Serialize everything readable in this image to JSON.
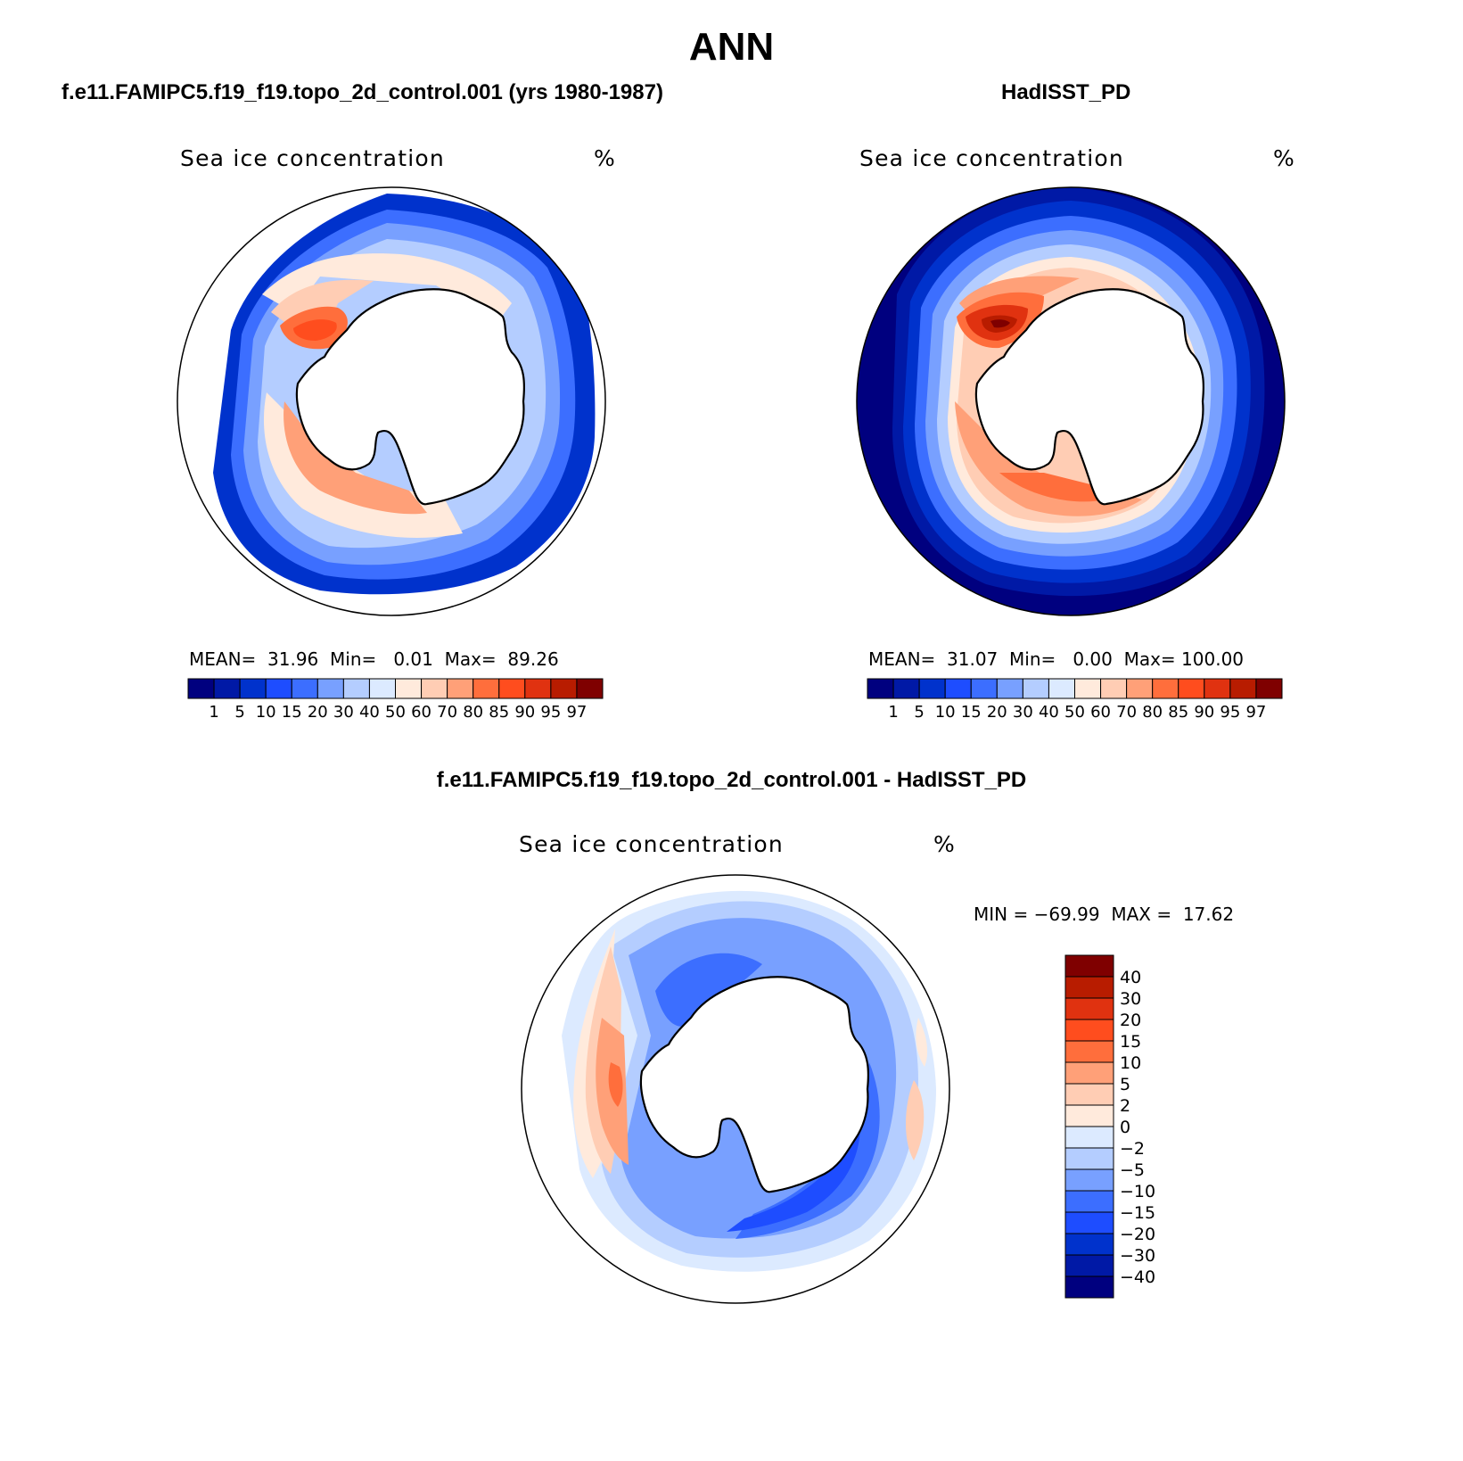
{
  "title": "ANN",
  "panels": [
    {
      "subtitle": "f.e11.FAMIPC5.f19_f19.topo_2d_control.001 (yrs 1980-1987)",
      "variable": "Sea ice concentration",
      "units": "%",
      "stats": {
        "mean_label": "MEAN=",
        "mean": "31.96",
        "min_label": "Min=",
        "min": "0.01",
        "max_label": "Max=",
        "max": "89.26"
      },
      "colorbar_labels": [
        "1",
        "5",
        "10",
        "15",
        "20",
        "30",
        "40",
        "50",
        "60",
        "70",
        "80",
        "85",
        "90",
        "95",
        "97"
      ]
    },
    {
      "subtitle": "HadISST_PD",
      "variable": "Sea ice concentration",
      "units": "%",
      "stats": {
        "mean_label": "MEAN=",
        "mean": "31.07",
        "min_label": "Min=",
        "min": "0.00",
        "max_label": "Max=",
        "max": "100.00"
      },
      "colorbar_labels": [
        "1",
        "5",
        "10",
        "15",
        "20",
        "30",
        "40",
        "50",
        "60",
        "70",
        "80",
        "85",
        "90",
        "95",
        "97"
      ]
    },
    {
      "subtitle": "f.e11.FAMIPC5.f19_f19.topo_2d_control.001 - HadISST_PD",
      "variable": "Sea ice concentration",
      "units": "%",
      "stats": {
        "min_label": "MIN =",
        "min": "−69.99",
        "max_label": "MAX =",
        "max": "17.62"
      },
      "colorbar_labels": [
        "40",
        "30",
        "20",
        "15",
        "10",
        "5",
        "2",
        "0",
        "−2",
        "−5",
        "−10",
        "−15",
        "−20",
        "−30",
        "−40"
      ]
    }
  ],
  "colors": {
    "abs_scale": [
      "#00007f",
      "#0019a6",
      "#0032cc",
      "#1e4dff",
      "#3c6eff",
      "#78a0ff",
      "#b4cdff",
      "#dceaff",
      "#ffeadc",
      "#ffcdb4",
      "#ffa078",
      "#ff6e3c",
      "#ff4d1e",
      "#e03210",
      "#b81c00",
      "#7f0000"
    ],
    "diff_scale": [
      "#7f0000",
      "#b81c00",
      "#e03210",
      "#ff4d1e",
      "#ff6e3c",
      "#ffa078",
      "#ffcdb4",
      "#ffeadc",
      "#dceaff",
      "#b4cdff",
      "#78a0ff",
      "#3c6eff",
      "#1e4dff",
      "#0032cc",
      "#0019a6",
      "#00007f"
    ]
  }
}
